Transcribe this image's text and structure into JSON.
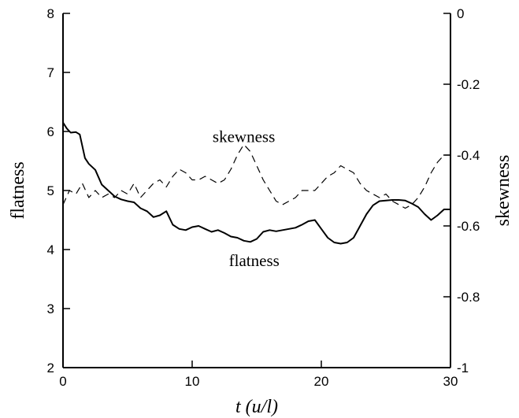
{
  "chart_data": {
    "type": "line",
    "xlabel": "t (u/l)",
    "ylabel": "flatness",
    "ylabel_right": "skewness",
    "xlim": [
      0,
      30
    ],
    "ylim": [
      2,
      8
    ],
    "ylim_right": [
      -1,
      0
    ],
    "x_ticks": [
      "0",
      "10",
      "20",
      "30"
    ],
    "x_tick_values": [
      0,
      10,
      20,
      30
    ],
    "y_ticks": [
      "2",
      "3",
      "4",
      "5",
      "6",
      "7",
      "8"
    ],
    "y_tick_values": [
      2,
      3,
      4,
      5,
      6,
      7,
      8
    ],
    "y_right_ticks": [
      "0",
      "-0.2",
      "-0.4",
      "-0.6",
      "-0.8",
      "-1"
    ],
    "y_right_tick_values": [
      0,
      -0.2,
      -0.4,
      -0.6,
      -0.8,
      -1
    ],
    "grid": false,
    "annotations": [
      {
        "text": "skewness",
        "x": 14.0,
        "y": 5.82
      },
      {
        "text": "flatness",
        "x": 14.8,
        "y": 3.72
      }
    ],
    "series": [
      {
        "axis": "left",
        "style": "solid",
        "points": [
          [
            0,
            6.15
          ],
          [
            0.3,
            6.05
          ],
          [
            0.6,
            5.98
          ],
          [
            1,
            5.99
          ],
          [
            1.3,
            5.95
          ],
          [
            1.7,
            5.55
          ],
          [
            2,
            5.45
          ],
          [
            2.5,
            5.35
          ],
          [
            3,
            5.1
          ],
          [
            3.5,
            5.0
          ],
          [
            4,
            4.9
          ],
          [
            4.5,
            4.85
          ],
          [
            5,
            4.82
          ],
          [
            5.5,
            4.8
          ],
          [
            6,
            4.7
          ],
          [
            6.5,
            4.65
          ],
          [
            7,
            4.55
          ],
          [
            7.5,
            4.58
          ],
          [
            8,
            4.65
          ],
          [
            8.5,
            4.42
          ],
          [
            9,
            4.35
          ],
          [
            9.5,
            4.33
          ],
          [
            10,
            4.38
          ],
          [
            10.5,
            4.4
          ],
          [
            11,
            4.35
          ],
          [
            11.5,
            4.3
          ],
          [
            12,
            4.33
          ],
          [
            12.5,
            4.28
          ],
          [
            13,
            4.22
          ],
          [
            13.5,
            4.2
          ],
          [
            14,
            4.15
          ],
          [
            14.5,
            4.13
          ],
          [
            15,
            4.18
          ],
          [
            15.5,
            4.3
          ],
          [
            16,
            4.33
          ],
          [
            16.5,
            4.31
          ],
          [
            17,
            4.33
          ],
          [
            17.5,
            4.35
          ],
          [
            18,
            4.37
          ],
          [
            18.5,
            4.42
          ],
          [
            19,
            4.48
          ],
          [
            19.5,
            4.5
          ],
          [
            20,
            4.35
          ],
          [
            20.5,
            4.2
          ],
          [
            21,
            4.12
          ],
          [
            21.5,
            4.1
          ],
          [
            22,
            4.12
          ],
          [
            22.5,
            4.2
          ],
          [
            23,
            4.4
          ],
          [
            23.5,
            4.6
          ],
          [
            24,
            4.75
          ],
          [
            24.5,
            4.82
          ],
          [
            25,
            4.83
          ],
          [
            25.5,
            4.84
          ],
          [
            26,
            4.84
          ],
          [
            26.5,
            4.83
          ],
          [
            27,
            4.78
          ],
          [
            27.5,
            4.72
          ],
          [
            28,
            4.6
          ],
          [
            28.5,
            4.5
          ],
          [
            29,
            4.58
          ],
          [
            29.5,
            4.68
          ],
          [
            30,
            4.68
          ]
        ]
      },
      {
        "axis": "right",
        "style": "dashed",
        "points": [
          [
            0,
            -0.54
          ],
          [
            0.5,
            -0.5
          ],
          [
            1,
            -0.51
          ],
          [
            1.5,
            -0.48
          ],
          [
            2,
            -0.52
          ],
          [
            2.5,
            -0.5
          ],
          [
            3,
            -0.52
          ],
          [
            3.5,
            -0.51
          ],
          [
            4,
            -0.52
          ],
          [
            4.5,
            -0.5
          ],
          [
            5,
            -0.51
          ],
          [
            5.5,
            -0.48
          ],
          [
            6,
            -0.52
          ],
          [
            6.5,
            -0.5
          ],
          [
            7,
            -0.48
          ],
          [
            7.5,
            -0.47
          ],
          [
            8,
            -0.49
          ],
          [
            8.5,
            -0.46
          ],
          [
            9,
            -0.44
          ],
          [
            9.5,
            -0.45
          ],
          [
            10,
            -0.47
          ],
          [
            10.5,
            -0.47
          ],
          [
            11,
            -0.46
          ],
          [
            11.5,
            -0.47
          ],
          [
            12,
            -0.48
          ],
          [
            12.5,
            -0.47
          ],
          [
            13,
            -0.44
          ],
          [
            13.5,
            -0.4
          ],
          [
            14,
            -0.37
          ],
          [
            14.5,
            -0.39
          ],
          [
            15,
            -0.43
          ],
          [
            15.5,
            -0.47
          ],
          [
            16,
            -0.5
          ],
          [
            16.5,
            -0.53
          ],
          [
            17,
            -0.54
          ],
          [
            17.5,
            -0.53
          ],
          [
            18,
            -0.52
          ],
          [
            18.5,
            -0.5
          ],
          [
            19,
            -0.5
          ],
          [
            19.5,
            -0.5
          ],
          [
            20,
            -0.48
          ],
          [
            20.5,
            -0.46
          ],
          [
            21,
            -0.45
          ],
          [
            21.5,
            -0.43
          ],
          [
            22,
            -0.44
          ],
          [
            22.5,
            -0.45
          ],
          [
            23,
            -0.48
          ],
          [
            23.5,
            -0.5
          ],
          [
            24,
            -0.51
          ],
          [
            24.5,
            -0.52
          ],
          [
            25,
            -0.51
          ],
          [
            25.5,
            -0.53
          ],
          [
            26,
            -0.54
          ],
          [
            26.5,
            -0.55
          ],
          [
            27,
            -0.54
          ],
          [
            27.5,
            -0.52
          ],
          [
            28,
            -0.49
          ],
          [
            28.5,
            -0.45
          ],
          [
            29,
            -0.42
          ],
          [
            29.5,
            -0.4
          ],
          [
            30,
            -0.4
          ]
        ]
      }
    ]
  }
}
